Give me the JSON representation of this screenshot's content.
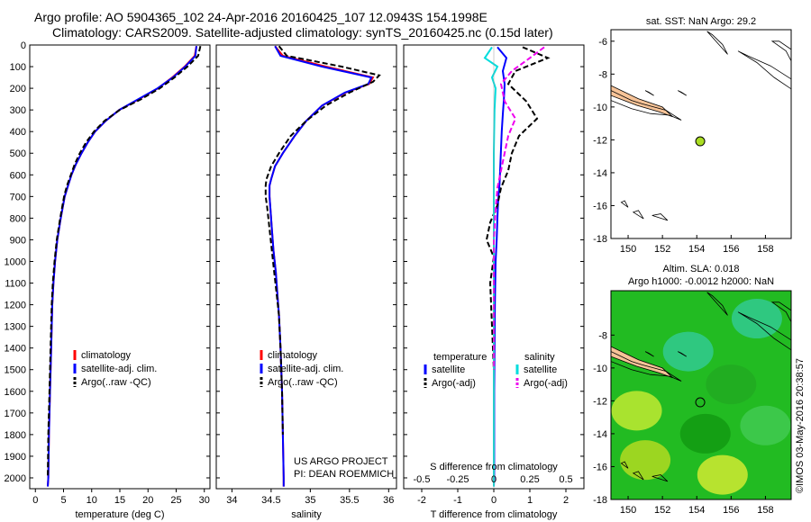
{
  "header": {
    "title_line1": "Argo profile: AO 5904365_102 24-Apr-2016 20160425_107 12.0943S 154.1998E",
    "title_line2": "Climatology: CARS2009. Satellite-adjusted climatology: synTS_20160425.nc (0.15d later)"
  },
  "stamp": "©IMOS 03-May-2016 20:38:57",
  "chart_data": [
    {
      "type": "line",
      "id": "temperature",
      "xlabel": "temperature (deg C)",
      "ylabel": "",
      "xlim": [
        -1,
        31
      ],
      "ylim": [
        2050,
        0
      ],
      "xticks": [
        0,
        5,
        10,
        15,
        20,
        25,
        30
      ],
      "yticks": [
        0,
        100,
        200,
        300,
        400,
        500,
        600,
        700,
        800,
        900,
        1000,
        1100,
        1200,
        1300,
        1400,
        1500,
        1600,
        1700,
        1800,
        1900,
        2000
      ],
      "legend": [
        "climatology",
        "satellite-adj. clim.",
        "Argo(..raw -QC)"
      ],
      "legend_placement": "lower-center",
      "series": [
        {
          "name": "climatology",
          "color": "#ff0000",
          "style": "solid",
          "x": [
            28.6,
            28.3,
            26.5,
            24.3,
            21.8,
            18.4,
            14.9,
            12.5,
            10.6,
            9.3,
            8.2,
            7.2,
            6.4,
            5.8,
            5.2,
            4.5,
            3.9,
            3.5,
            3.2,
            3.0,
            2.8,
            2.6,
            2.4,
            2.3,
            2.2
          ],
          "y": [
            5,
            50,
            100,
            150,
            200,
            250,
            300,
            350,
            400,
            450,
            500,
            550,
            600,
            650,
            700,
            800,
            900,
            1000,
            1100,
            1200,
            1400,
            1600,
            1800,
            2000,
            2040
          ]
        },
        {
          "name": "satellite-adj. clim.",
          "color": "#0000ff",
          "style": "solid",
          "x": [
            28.6,
            28.4,
            26.6,
            24.4,
            21.7,
            18.3,
            14.9,
            12.5,
            10.6,
            9.3,
            8.2,
            7.2,
            6.4,
            5.8,
            5.2,
            4.5,
            3.9,
            3.5,
            3.2,
            3.0,
            2.8,
            2.6,
            2.4,
            2.3,
            2.2
          ],
          "y": [
            5,
            50,
            100,
            150,
            200,
            250,
            300,
            350,
            400,
            450,
            500,
            550,
            600,
            650,
            700,
            800,
            900,
            1000,
            1100,
            1200,
            1400,
            1600,
            1800,
            2000,
            2040
          ]
        },
        {
          "name": "Argo(..raw -QC)",
          "color": "#000000",
          "style": "dashed",
          "x": [
            29.3,
            28.9,
            27.0,
            24.7,
            22.1,
            18.8,
            15.0,
            12.3,
            10.4,
            9.0,
            7.9,
            7.0,
            6.3,
            5.6,
            5.1,
            4.4,
            3.8,
            3.4,
            3.1,
            2.9,
            2.7,
            2.5,
            2.3,
            2.2
          ],
          "y": [
            5,
            50,
            100,
            150,
            200,
            250,
            300,
            350,
            400,
            450,
            500,
            550,
            600,
            650,
            700,
            800,
            900,
            1000,
            1100,
            1200,
            1400,
            1600,
            1800,
            2000
          ]
        }
      ]
    },
    {
      "type": "line",
      "id": "salinity",
      "xlabel": "salinity",
      "ylabel": "",
      "xlim": [
        33.8,
        36.1
      ],
      "ylim": [
        2050,
        0
      ],
      "xticks": [
        34,
        34.5,
        35,
        35.5,
        36
      ],
      "legend": [
        "climatology",
        "satellite-adj. clim.",
        "Argo(..raw -QC)"
      ],
      "legend_placement": "lower-center",
      "annotation": [
        "US ARGO PROJECT",
        "PI: DEAN ROEMMICH"
      ],
      "series": [
        {
          "name": "climatology",
          "color": "#ff0000",
          "style": "solid",
          "x": [
            34.55,
            34.65,
            35.2,
            35.8,
            35.75,
            35.45,
            35.15,
            34.95,
            34.8,
            34.65,
            34.55,
            34.5,
            34.48,
            34.48,
            34.49,
            34.51,
            34.53,
            34.56,
            34.58,
            34.6,
            34.62,
            34.64,
            34.65,
            34.66,
            34.66
          ],
          "y": [
            5,
            50,
            100,
            150,
            180,
            220,
            280,
            350,
            420,
            500,
            560,
            620,
            650,
            700,
            750,
            850,
            950,
            1050,
            1150,
            1250,
            1400,
            1600,
            1800,
            2000,
            2040
          ]
        },
        {
          "name": "satellite-adj. clim.",
          "color": "#0000ff",
          "style": "solid",
          "x": [
            34.55,
            34.62,
            35.15,
            35.78,
            35.74,
            35.44,
            35.15,
            34.95,
            34.8,
            34.65,
            34.55,
            34.5,
            34.48,
            34.48,
            34.49,
            34.51,
            34.53,
            34.56,
            34.58,
            34.6,
            34.62,
            34.64,
            34.65,
            34.66,
            34.66
          ],
          "y": [
            5,
            50,
            100,
            150,
            180,
            220,
            280,
            350,
            420,
            500,
            560,
            620,
            650,
            700,
            750,
            850,
            950,
            1050,
            1150,
            1250,
            1400,
            1600,
            1800,
            2000,
            2040
          ]
        },
        {
          "name": "Argo(..raw -QC)",
          "color": "#000000",
          "style": "dashed",
          "x": [
            34.6,
            34.7,
            35.4,
            35.88,
            35.8,
            35.5,
            35.2,
            34.95,
            34.75,
            34.6,
            34.5,
            34.44,
            34.43,
            34.43,
            34.45,
            34.48,
            34.51,
            34.54,
            34.57,
            34.6,
            34.62,
            34.64,
            34.65
          ],
          "y": [
            5,
            50,
            100,
            140,
            170,
            220,
            280,
            350,
            420,
            500,
            560,
            620,
            650,
            700,
            750,
            850,
            950,
            1050,
            1150,
            1250,
            1400,
            1600,
            1800
          ]
        }
      ]
    },
    {
      "type": "line",
      "id": "difference",
      "xlabel": "T difference from climatology",
      "xlabel_top": "S difference from climatology",
      "ylabel": "",
      "xlim": [
        -2.5,
        2.5
      ],
      "ylim": [
        2050,
        0
      ],
      "xticks": [
        -2,
        -1,
        0,
        1,
        2
      ],
      "xticks_top": [
        "-0.5",
        "-0.25",
        "0",
        "0.25",
        "0.5"
      ],
      "legend_headers": [
        "temperature",
        "salinity"
      ],
      "legend": [
        "satellite",
        "Argo(-adj)",
        "satellite",
        "Argo(-adj)"
      ],
      "legend_placement": "lower-center",
      "series": [
        {
          "name": "satellite",
          "group": "temperature",
          "color": "#0000ff",
          "style": "solid",
          "x": [
            0.1,
            0.35,
            0.25,
            0.3,
            0.28,
            0.25,
            0.22,
            0.2,
            0.18,
            0.16,
            0.12,
            0.1,
            0.08,
            0.05,
            0.03,
            0.02,
            0.01,
            0.01,
            0.01,
            0.0
          ],
          "y": [
            10,
            60,
            120,
            180,
            250,
            320,
            400,
            480,
            560,
            640,
            720,
            800,
            900,
            1000,
            1200,
            1400,
            1600,
            1800,
            2000,
            2040
          ]
        },
        {
          "name": "Argo(-adj)",
          "group": "temperature",
          "color": "#000000",
          "style": "dashed",
          "x": [
            0.8,
            1.5,
            0.6,
            0.4,
            0.9,
            1.2,
            0.7,
            0.5,
            0.4,
            0.2,
            0.1,
            -0.1,
            -0.2,
            0.0,
            -0.1,
            -0.05,
            0.0,
            0.0,
            0.0
          ],
          "y": [
            10,
            60,
            120,
            180,
            260,
            340,
            420,
            500,
            580,
            660,
            740,
            820,
            900,
            980,
            1100,
            1300,
            1500,
            1700,
            1900
          ]
        },
        {
          "name": "satellite",
          "group": "salinity",
          "color": "#00dddd",
          "style": "solid",
          "x": [
            -0.05,
            -0.25,
            0.1,
            -0.05,
            0.05,
            0.02,
            0.01,
            0.0,
            0.0,
            0.0,
            0.0,
            0.0,
            0.0,
            0.0,
            0.0,
            0.0,
            0.0,
            0.0
          ],
          "y": [
            10,
            60,
            100,
            150,
            200,
            300,
            400,
            500,
            600,
            700,
            800,
            900,
            1000,
            1200,
            1400,
            1600,
            1800,
            2040
          ]
        },
        {
          "name": "Argo(-adj)",
          "group": "salinity",
          "color": "#ee00ee",
          "style": "dashed",
          "x": [
            1.4,
            1.0,
            0.5,
            0.2,
            0.3,
            0.6,
            0.4,
            0.3,
            0.2,
            0.1,
            0.05,
            0.0,
            0.0,
            0.0,
            0.0
          ],
          "y": [
            10,
            60,
            120,
            180,
            260,
            340,
            420,
            500,
            580,
            660,
            760,
            900,
            1100,
            1300,
            1500
          ]
        }
      ]
    },
    {
      "type": "map",
      "id": "sst-map",
      "title": "sat. SST: NaN Argo: 29.2",
      "xlim": [
        149,
        159.5
      ],
      "ylim": [
        -18,
        -5.3
      ],
      "xticks": [
        150,
        152,
        154,
        156,
        158
      ],
      "yticks": [
        -6,
        -8,
        -10,
        -12,
        -14,
        -16,
        -18
      ],
      "marker": {
        "lon": 154.2,
        "lat": -12.09,
        "color": "#aadd22"
      },
      "land_color": "#f7c397"
    },
    {
      "type": "map",
      "id": "sla-map",
      "title_line1": "Altim. SLA: 0.018",
      "title_line2": "Argo h1000: -0.0012 h2000: NaN",
      "xlim": [
        149,
        159.5
      ],
      "ylim": [
        -18,
        -5.3
      ],
      "xticks": [
        150,
        152,
        154,
        156,
        158
      ],
      "yticks": [
        -8,
        -10,
        -12,
        -14,
        -16,
        -18
      ],
      "marker": {
        "lon": 154.2,
        "lat": -12.09,
        "color": "none"
      },
      "land_color": "#f7c397",
      "sea_color": "#22bb22"
    }
  ]
}
